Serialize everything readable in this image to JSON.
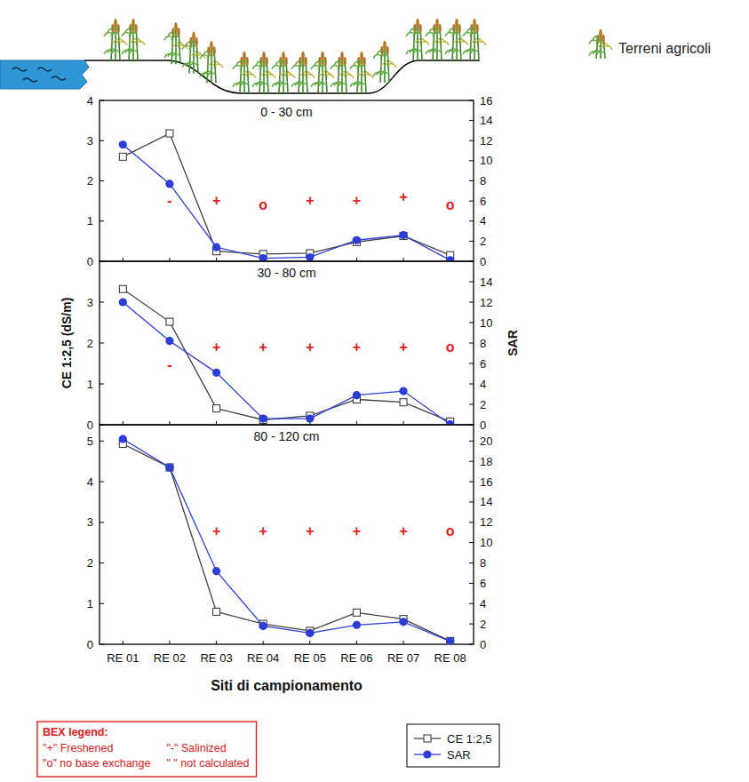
{
  "illustration": {
    "label": "Terreni agricoli"
  },
  "bex_legend": {
    "title": "BEX legend:",
    "items": [
      "\"+\" Freshened",
      "\"o\" no base exchange",
      "\"-\" Salinized",
      "\" \" not calculated"
    ]
  },
  "chart_data": [
    {
      "type": "line",
      "title": "0 - 30 cm",
      "categories": [
        "RE 01",
        "RE 02",
        "RE 03",
        "RE 04",
        "RE 05",
        "RE 06",
        "RE 07",
        "RE 08"
      ],
      "series": [
        {
          "name": "CE 1:2,5",
          "color": "#404040",
          "marker": "square",
          "values": [
            2.6,
            3.18,
            0.25,
            0.18,
            0.2,
            0.48,
            0.63,
            0.15
          ]
        },
        {
          "name": "SAR",
          "color": "#2b3fd6",
          "marker": "circle",
          "axis": "y2",
          "values": [
            11.6,
            7.7,
            1.4,
            0.3,
            0.4,
            2.1,
            2.6,
            0.1
          ]
        }
      ],
      "ylim": [
        0,
        4
      ],
      "yticks": [
        0,
        1,
        2,
        3,
        4
      ],
      "y2lim": [
        0,
        16
      ],
      "y2ticks": [
        0,
        2,
        4,
        6,
        8,
        10,
        12,
        14,
        16
      ],
      "tick_labels": "y",
      "annotations": [
        {
          "category": "RE 02",
          "y": 1.5,
          "text": "-"
        },
        {
          "category": "RE 03",
          "y": 1.5,
          "text": "+"
        },
        {
          "category": "RE 04",
          "y": 1.4,
          "text": "o"
        },
        {
          "category": "RE 05",
          "y": 1.5,
          "text": "+"
        },
        {
          "category": "RE 06",
          "y": 1.5,
          "text": "+"
        },
        {
          "category": "RE 07",
          "y": 1.6,
          "text": "+"
        },
        {
          "category": "RE 08",
          "y": 1.4,
          "text": "o"
        }
      ]
    },
    {
      "type": "line",
      "title": "30 - 80 cm",
      "y_label": "CE 1:2,5 (dS/m)",
      "y2_label": "SAR",
      "categories": [
        "RE 01",
        "RE 02",
        "RE 03",
        "RE 04",
        "RE 05",
        "RE 06",
        "RE 07",
        "RE 08"
      ],
      "series": [
        {
          "name": "CE 1:2,5",
          "color": "#404040",
          "marker": "square",
          "values": [
            3.32,
            2.52,
            0.4,
            0.12,
            0.22,
            0.62,
            0.55,
            0.08
          ]
        },
        {
          "name": "SAR",
          "color": "#2b3fd6",
          "marker": "circle",
          "axis": "y2",
          "values": [
            12.0,
            8.2,
            5.1,
            0.6,
            0.6,
            2.9,
            3.3,
            0.05
          ]
        }
      ],
      "ylim": [
        0,
        4
      ],
      "yticks": [
        0,
        1,
        2,
        3
      ],
      "y2lim": [
        0,
        16
      ],
      "y2ticks": [
        0,
        2,
        4,
        6,
        8,
        10,
        12,
        14
      ],
      "tick_labels": "y",
      "annotations": [
        {
          "category": "RE 02",
          "y": 1.45,
          "text": "-"
        },
        {
          "category": "RE 03",
          "y": 1.9,
          "text": "+"
        },
        {
          "category": "RE 04",
          "y": 1.9,
          "text": "+"
        },
        {
          "category": "RE 05",
          "y": 1.9,
          "text": "+"
        },
        {
          "category": "RE 06",
          "y": 1.9,
          "text": "+"
        },
        {
          "category": "RE 07",
          "y": 1.9,
          "text": "+"
        },
        {
          "category": "RE 08",
          "y": 1.9,
          "text": "o"
        }
      ]
    },
    {
      "type": "line",
      "title": "80 - 120 cm",
      "x_label": "Siti di campionamento",
      "legend": "below",
      "categories": [
        "RE 01",
        "RE 02",
        "RE 03",
        "RE 04",
        "RE 05",
        "RE 06",
        "RE 07",
        "RE 08"
      ],
      "series": [
        {
          "name": "CE 1:2,5",
          "color": "#404040",
          "marker": "square",
          "values": [
            4.93,
            4.35,
            0.8,
            0.5,
            0.33,
            0.78,
            0.62,
            0.08
          ]
        },
        {
          "name": "SAR",
          "color": "#2b3fd6",
          "marker": "circle",
          "axis": "y2",
          "values": [
            20.2,
            17.4,
            7.2,
            1.8,
            1.1,
            1.9,
            2.2,
            0.3
          ]
        }
      ],
      "ylim": [
        0,
        5.4
      ],
      "yticks": [
        0,
        1,
        2,
        3,
        4,
        5
      ],
      "y2lim": [
        0,
        21.6
      ],
      "y2ticks": [
        0,
        2,
        4,
        6,
        8,
        10,
        12,
        14,
        16,
        18,
        20
      ],
      "annotations": [
        {
          "category": "RE 03",
          "y": 2.78,
          "text": "+"
        },
        {
          "category": "RE 04",
          "y": 2.78,
          "text": "+"
        },
        {
          "category": "RE 05",
          "y": 2.78,
          "text": "+"
        },
        {
          "category": "RE 06",
          "y": 2.78,
          "text": "+"
        },
        {
          "category": "RE 07",
          "y": 2.78,
          "text": "+"
        },
        {
          "category": "RE 08",
          "y": 2.78,
          "text": "o"
        }
      ]
    }
  ]
}
